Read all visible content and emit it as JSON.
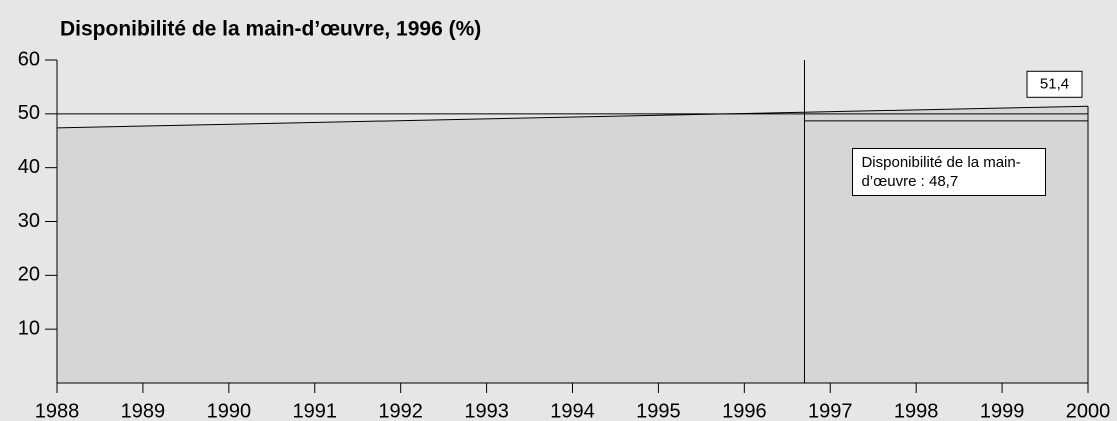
{
  "chart_data": {
    "type": "area",
    "title": "Disponibilité de la main-d’œuvre, 1996 (%)",
    "x": [
      1988,
      2000
    ],
    "values": [
      47.4,
      51.4
    ],
    "xlim": [
      1988,
      2000
    ],
    "xticks": [
      1988,
      1989,
      1990,
      1991,
      1992,
      1993,
      1994,
      1995,
      1996,
      1997,
      1998,
      1999,
      2000
    ],
    "ylim": [
      0,
      60
    ],
    "yticks": [
      10,
      20,
      30,
      40,
      50,
      60
    ],
    "reference_line": 50,
    "split_x": 1996.7,
    "annotations": [
      {
        "x": 2000,
        "value": 51.4,
        "label": "51,4"
      },
      {
        "x": 1996.7,
        "value": 48.7,
        "label": "Disponibilité de la main-d’œuvre : 48,7"
      }
    ]
  }
}
